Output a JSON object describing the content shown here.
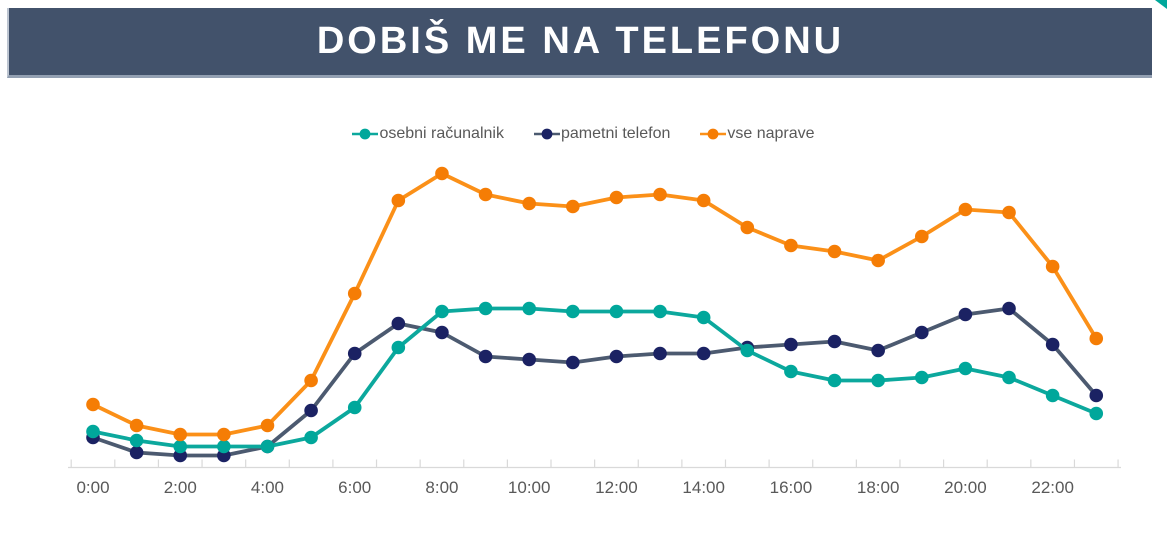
{
  "header": {
    "title": "DOBIŠ ME NA TELEFONU",
    "bg_color": "#42526B",
    "text_color": "#FFFFFF"
  },
  "corner_accent_color": "#00A79B",
  "chart_data": {
    "type": "line",
    "title": "DOBIŠ ME NA TELEFONU",
    "x_categories_hours": [
      0,
      1,
      2,
      3,
      4,
      5,
      6,
      7,
      8,
      9,
      10,
      11,
      12,
      13,
      14,
      15,
      16,
      17,
      18,
      19,
      20,
      21,
      22,
      23
    ],
    "x_tick_labels": [
      "0:00",
      "2:00",
      "4:00",
      "6:00",
      "8:00",
      "10:00",
      "12:00",
      "14:00",
      "16:00",
      "18:00",
      "20:00",
      "22:00"
    ],
    "series": [
      {
        "name": "osebni računalnik",
        "marker_color": "#00A79B",
        "line_color": "#0CA89D",
        "values": [
          12,
          9,
          7,
          7,
          7,
          10,
          20,
          40,
          52,
          53,
          53,
          52,
          52,
          52,
          50,
          39,
          32,
          29,
          29,
          30,
          33,
          30,
          24,
          18
        ]
      },
      {
        "name": "pametni telefon",
        "marker_color": "#1B2263",
        "line_color": "#4C5A70",
        "values": [
          10,
          5,
          4,
          4,
          7,
          19,
          38,
          48,
          45,
          37,
          36,
          35,
          37,
          38,
          38,
          40,
          41,
          42,
          39,
          45,
          51,
          53,
          41,
          24
        ]
      },
      {
        "name": "vse naprave",
        "marker_color": "#F57D05",
        "line_color": "#FB9018",
        "values": [
          21,
          14,
          11,
          11,
          14,
          29,
          58,
          89,
          98,
          91,
          88,
          87,
          90,
          91,
          89,
          80,
          74,
          72,
          69,
          77,
          86,
          85,
          67,
          43
        ]
      }
    ],
    "draw_order": [
      1,
      0,
      2
    ],
    "xlabel": "",
    "ylabel": "",
    "ylim": [
      0,
      105
    ],
    "grid": false,
    "legend_position": "top-center",
    "axis_color": "#D9D9D9",
    "tick_label_color": "#595959",
    "tick_label_font_px": 17
  }
}
